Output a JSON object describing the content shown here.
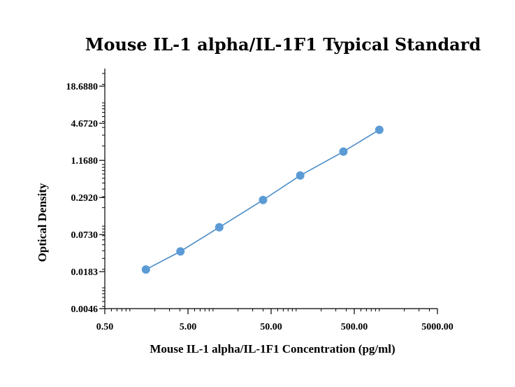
{
  "chart_data": {
    "type": "line",
    "title": "Mouse IL-1 alpha/IL-1F1 Typical Standard",
    "xlabel": "Mouse IL-1 alpha/IL-1F1 Concentration (pg/ml)",
    "ylabel": "Optical Density",
    "x_scale": "log",
    "y_scale": "log",
    "xlim": [
      0.5,
      5000
    ],
    "ylim": [
      0.0046,
      36
    ],
    "x_ticks": [
      {
        "value": 0.5,
        "label": "0.50"
      },
      {
        "value": 5,
        "label": "5.00"
      },
      {
        "value": 50,
        "label": "50.00"
      },
      {
        "value": 500,
        "label": "500.00"
      },
      {
        "value": 5000,
        "label": "5000.00"
      }
    ],
    "y_ticks": [
      {
        "value": 0.0046,
        "label": "0.0046"
      },
      {
        "value": 0.0183,
        "label": "0.0183"
      },
      {
        "value": 0.073,
        "label": "0.0730"
      },
      {
        "value": 0.292,
        "label": "0.2920"
      },
      {
        "value": 1.168,
        "label": "1.1680"
      },
      {
        "value": 4.672,
        "label": "4.6720"
      },
      {
        "value": 18.688,
        "label": "18.6880"
      }
    ],
    "series": [
      {
        "name": "Standard",
        "color": "#5b9bd5",
        "line_color": "#4a8cc7",
        "points": [
          {
            "x": 1.56,
            "y": 0.0198
          },
          {
            "x": 4.06,
            "y": 0.039
          },
          {
            "x": 11.9,
            "y": 0.096
          },
          {
            "x": 40.0,
            "y": 0.266
          },
          {
            "x": 112.0,
            "y": 0.665
          },
          {
            "x": 370.0,
            "y": 1.62
          },
          {
            "x": 1000.0,
            "y": 3.66
          }
        ]
      }
    ]
  }
}
